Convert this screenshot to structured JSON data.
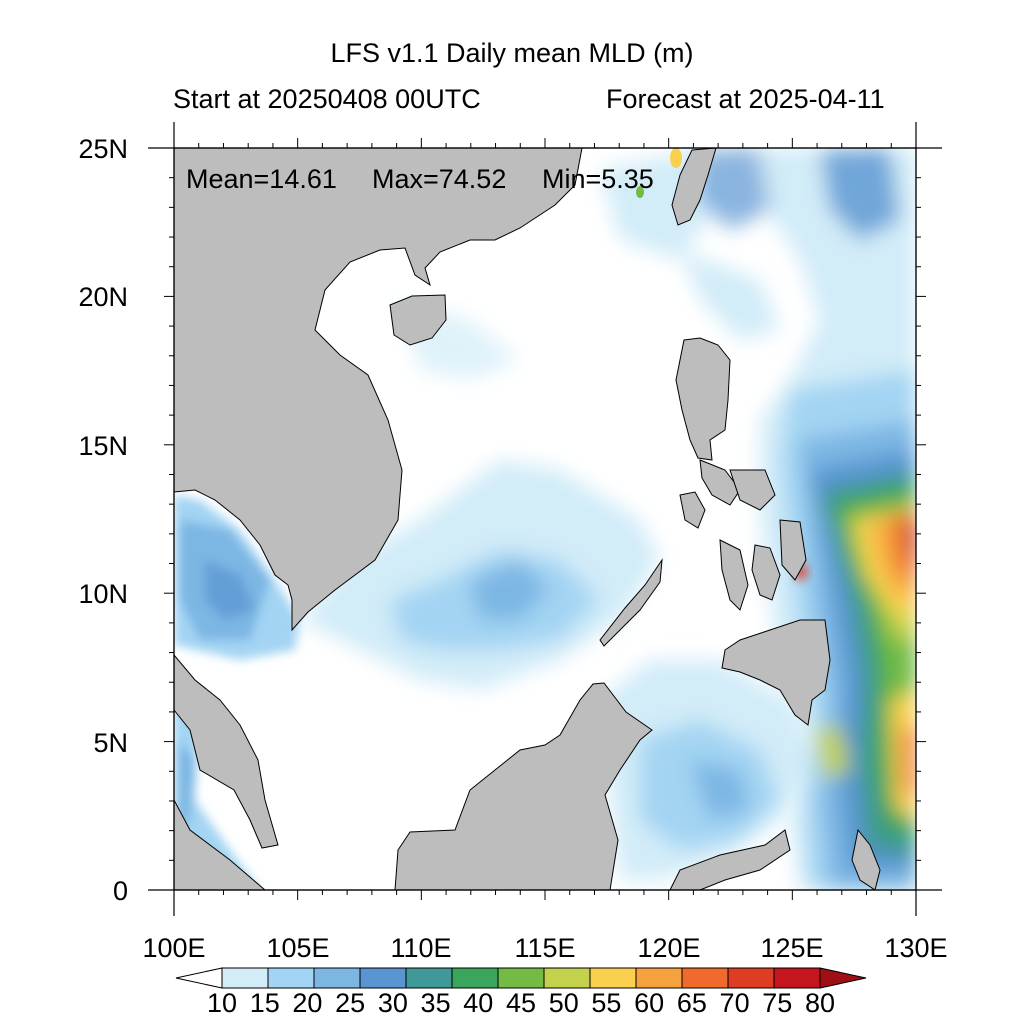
{
  "title": "LFS v1.1 Daily mean MLD (m)",
  "subtitle_left": "Start at 20250408 00UTC",
  "subtitle_right": "Forecast at 2025-04-11",
  "stats": {
    "mean": "Mean=14.61",
    "max": "Max=74.52",
    "min": "Min=5.35"
  },
  "lon_ticks": [
    "100E",
    "105E",
    "110E",
    "115E",
    "120E",
    "125E",
    "130E"
  ],
  "lat_ticks": [
    "0",
    "5N",
    "10N",
    "15N",
    "20N",
    "25N"
  ],
  "colorbar": {
    "labels": [
      "10",
      "15",
      "20",
      "25",
      "30",
      "35",
      "40",
      "45",
      "50",
      "55",
      "60",
      "65",
      "70",
      "75",
      "80"
    ],
    "colors": [
      "#ffffff",
      "#d2ecf8",
      "#a3d4f3",
      "#7cb6e3",
      "#5995d1",
      "#3f9998",
      "#3aa55c",
      "#73bb45",
      "#c3d24c",
      "#fad04e",
      "#f5a23e",
      "#ef6a2c",
      "#df3c24",
      "#c5161e",
      "#9e1016"
    ]
  },
  "land_color": "#bdbdbd"
}
